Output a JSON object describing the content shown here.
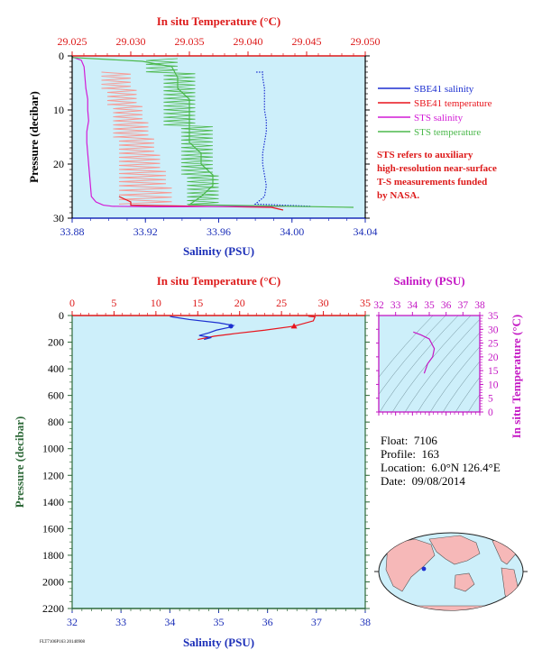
{
  "colors": {
    "plot_bg": "#cdeffa",
    "sbe41_salinity": "#1c2fd0",
    "sbe41_temperature": "#e8141c",
    "sts_salinity": "#d21ad6",
    "sts_temperature": "#4bb84b",
    "sbe41_temperature_light": "#f89a94",
    "temp_axis": "#dd1a1a",
    "salinity_axis": "#1c2fb8",
    "pressure_axis": "#2f6a3a",
    "ts_axis": "#c418c4",
    "note": "#dd1a1a"
  },
  "note_lines": [
    "STS refers to auxiliary",
    "high-resolution near-surface",
    "T-S measurements funded",
    "by NASA."
  ],
  "info": {
    "float_label": "Float:",
    "float": "7106",
    "profile_label": "Profile:",
    "profile": "163",
    "location_label": "Location:",
    "location": "6.0°N 126.4°E",
    "date_label": "Date:",
    "date": "09/08/2014"
  },
  "footer": "FLT7106P163 20140908",
  "chart_data": [
    {
      "type": "line",
      "name": "near-surface-profile",
      "title_top": "In situ Temperature (°C)",
      "xlabel": "Salinity (PSU)",
      "ylabel": "Pressure (decibar)",
      "temp_range": [
        29.025,
        29.05
      ],
      "temp_ticks": [
        "29.025",
        "29.030",
        "29.035",
        "29.040",
        "29.045",
        "29.050"
      ],
      "salinity_range": [
        33.88,
        34.04
      ],
      "salinity_ticks": [
        "33.88",
        "33.92",
        "33.96",
        "34.00",
        "34.04"
      ],
      "pressure_range": [
        0,
        30
      ],
      "pressure_ticks": [
        "0",
        "10",
        "20",
        "30"
      ],
      "legend": {
        "position": "right",
        "entries": [
          "SBE41 salinity",
          "SBE41 temperature",
          "STS salinity",
          "STS temperature"
        ]
      },
      "series": [
        {
          "name": "SBE41 salinity",
          "axis": "salinity",
          "style": "dotted",
          "x": [
            34.01,
            33.98,
            33.985,
            33.986,
            33.985,
            33.984,
            33.984,
            33.985,
            33.986,
            33.986,
            33.985,
            33.985,
            33.985,
            33.984,
            33.984,
            33.98
          ],
          "y": [
            27.8,
            27.4,
            26.0,
            24.0,
            22.0,
            20.0,
            18.0,
            16.0,
            14.0,
            12.0,
            10.0,
            8.0,
            6.0,
            4.0,
            3.0,
            3.0
          ]
        },
        {
          "name": "SBE41 temperature",
          "axis": "temperature",
          "x": [
            29.043,
            29.042,
            29.03,
            29.03,
            29.029
          ],
          "y": [
            28.5,
            28.0,
            27.6,
            27.0,
            26.0
          ]
        },
        {
          "name": "STS salinity",
          "axis": "salinity",
          "x": [
            33.88,
            33.885,
            33.8865,
            33.887,
            33.8875,
            33.8885,
            33.8885,
            33.889,
            33.888,
            33.888,
            33.8885,
            33.889,
            33.8895,
            33.89,
            33.8905,
            33.893,
            33.897,
            33.902,
            33.926,
            33.996
          ],
          "y": [
            0.2,
            0.8,
            2.0,
            4.0,
            6.0,
            8.0,
            10.0,
            12.0,
            14.0,
            16.0,
            18.0,
            20.0,
            22.0,
            24.0,
            26.0,
            27.0,
            27.6,
            27.8,
            27.9,
            27.8
          ]
        },
        {
          "name": "STS temperature",
          "axis": "temperature",
          "x": [
            29.025,
            29.031,
            29.0335,
            29.034,
            29.034,
            29.035,
            29.035,
            29.035,
            29.035,
            29.035,
            29.036,
            29.036,
            29.037,
            29.037,
            29.036,
            29.035,
            29.049
          ],
          "y": [
            0.3,
            1.0,
            2.0,
            4.0,
            6.0,
            8.0,
            10.0,
            12.0,
            14.0,
            16.0,
            18.0,
            20.0,
            22.0,
            24.0,
            26.0,
            27.5,
            28.0
          ]
        }
      ],
      "sbe41_temperature_band": {
        "y": [
          3,
          6,
          9,
          12,
          15,
          18,
          21,
          24,
          27.4
        ],
        "x_min": [
          29.0275,
          29.028,
          29.0285,
          29.0285,
          29.029,
          29.029,
          29.029,
          29.029,
          29.029
        ],
        "x_max": [
          29.03,
          29.0305,
          29.031,
          29.0315,
          29.032,
          29.0325,
          29.033,
          29.0335,
          29.034
        ]
      }
    },
    {
      "type": "line",
      "name": "full-profile",
      "title_top": "In situ Temperature (°C)",
      "xlabel": "Salinity (PSU)",
      "ylabel": "Pressure (decibar)",
      "temp_range": [
        0,
        35
      ],
      "temp_ticks": [
        "0",
        "5",
        "10",
        "15",
        "20",
        "25",
        "30",
        "35"
      ],
      "salinity_range": [
        32,
        38
      ],
      "salinity_ticks": [
        "32",
        "33",
        "34",
        "35",
        "36",
        "37",
        "38"
      ],
      "pressure_range": [
        0,
        2200
      ],
      "pressure_ticks": [
        "0",
        "200",
        "400",
        "600",
        "800",
        "1000",
        "1200",
        "1400",
        "1600",
        "1800",
        "2000",
        "2200"
      ],
      "series": [
        {
          "name": "Temperature",
          "axis": "temperature",
          "x": [
            28.2,
            29.0,
            28.8,
            26.5,
            23.0,
            19.5,
            17.0,
            15.0
          ],
          "y": [
            5,
            10,
            40,
            80,
            110,
            135,
            155,
            180
          ]
        },
        {
          "name": "Salinity",
          "axis": "salinity",
          "x": [
            34.0,
            34.05,
            34.4,
            35.0,
            35.3,
            35.2,
            34.95,
            34.8,
            34.6,
            34.85,
            34.7
          ],
          "y": [
            5,
            10,
            30,
            55,
            75,
            90,
            110,
            130,
            150,
            165,
            180
          ]
        }
      ],
      "markers": [
        {
          "series": "Temperature",
          "x": 26.5,
          "y": 80,
          "shape": "triangle"
        },
        {
          "series": "Salinity",
          "x": 35.25,
          "y": 80,
          "shape": "circle"
        }
      ]
    },
    {
      "type": "line",
      "name": "ts-diagram",
      "xlabel": "Salinity (PSU)",
      "ylabel": "In situ Temperature (°C)",
      "salinity_range": [
        32,
        38
      ],
      "salinity_ticks": [
        "32",
        "33",
        "34",
        "35",
        "36",
        "37",
        "38"
      ],
      "temp_range": [
        0,
        35
      ],
      "temp_ticks": [
        "0",
        "5",
        "10",
        "15",
        "20",
        "25",
        "30",
        "35"
      ],
      "series": [
        {
          "name": "T-S",
          "x": [
            34.05,
            34.5,
            35.0,
            35.3,
            35.2,
            34.9,
            34.7
          ],
          "y": [
            29.0,
            28.0,
            26.5,
            23.0,
            20.0,
            17.5,
            14.0
          ]
        }
      ]
    }
  ]
}
